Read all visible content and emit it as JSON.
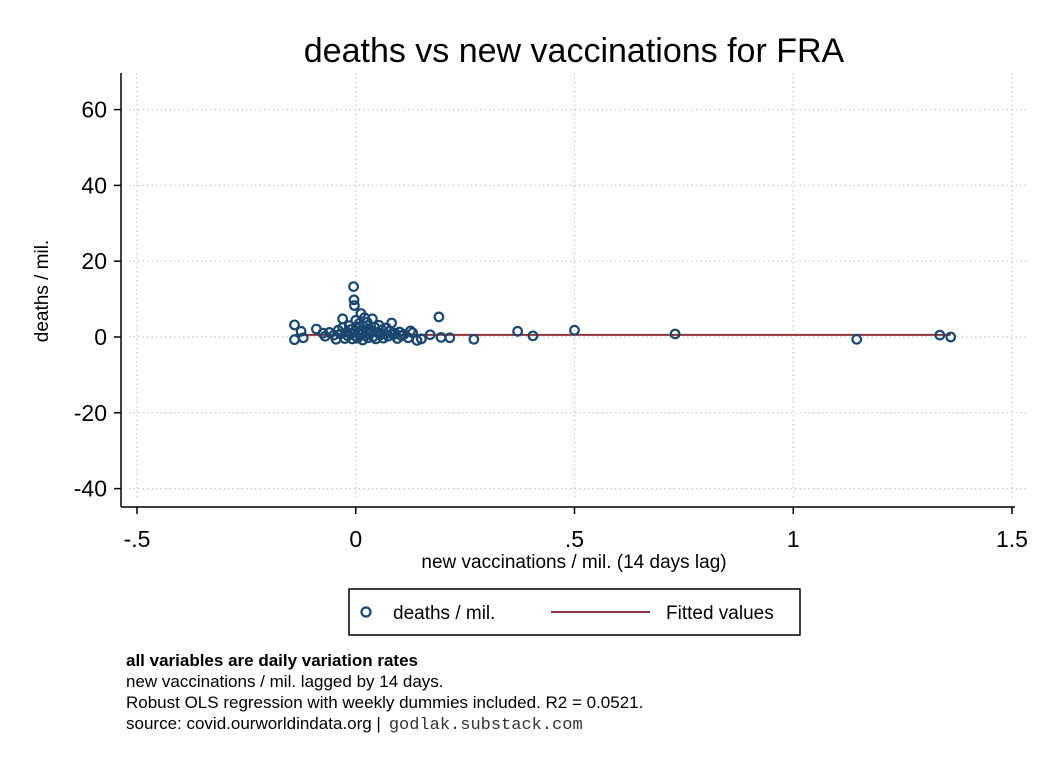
{
  "chart_data": {
    "type": "scatter",
    "title": "deaths vs new vaccinations for FRA",
    "xlabel": "new vaccinations / mil. (14 days lag)",
    "ylabel": "deaths / mil.",
    "xlim": [
      -0.5,
      1.5
    ],
    "ylim": [
      -45,
      70
    ],
    "xticks": [
      -0.5,
      0,
      0.5,
      1,
      1.5
    ],
    "xtick_labels": [
      "-.5",
      "0",
      ".5",
      "1",
      "1.5"
    ],
    "yticks": [
      -40,
      -20,
      0,
      20,
      40,
      60
    ],
    "ytick_labels": [
      "-40",
      "-20",
      "0",
      "20",
      "40",
      "60"
    ],
    "grid": true,
    "legend_position": "bottom",
    "series": [
      {
        "name": "deaths / mil.",
        "kind": "scatter",
        "color": "#1a476f",
        "points": [
          [
            -0.14,
            -0.7
          ],
          [
            -0.14,
            3.2
          ],
          [
            -0.125,
            1.5
          ],
          [
            -0.12,
            -0.2
          ],
          [
            -0.09,
            2.1
          ],
          [
            -0.075,
            1.0
          ],
          [
            -0.07,
            0.2
          ],
          [
            -0.06,
            1.2
          ],
          [
            -0.05,
            0.5
          ],
          [
            -0.045,
            -0.6
          ],
          [
            -0.04,
            1.8
          ],
          [
            -0.035,
            0.8
          ],
          [
            -0.03,
            4.8
          ],
          [
            -0.03,
            2.5
          ],
          [
            -0.025,
            -0.4
          ],
          [
            -0.02,
            1.3
          ],
          [
            -0.018,
            0.3
          ],
          [
            -0.015,
            3.0
          ],
          [
            -0.012,
            0.9
          ],
          [
            -0.01,
            2.0
          ],
          [
            -0.008,
            -0.5
          ],
          [
            -0.005,
            13.3
          ],
          [
            -0.004,
            9.8
          ],
          [
            -0.003,
            8.3
          ],
          [
            -0.002,
            1.5
          ],
          [
            0.0,
            0.2
          ],
          [
            0.0,
            4.4
          ],
          [
            0.002,
            2.7
          ],
          [
            0.004,
            -0.3
          ],
          [
            0.006,
            1.1
          ],
          [
            0.008,
            3.6
          ],
          [
            0.01,
            0.6
          ],
          [
            0.012,
            6.2
          ],
          [
            0.014,
            1.9
          ],
          [
            0.016,
            -0.8
          ],
          [
            0.018,
            2.8
          ],
          [
            0.02,
            5.1
          ],
          [
            0.022,
            0.4
          ],
          [
            0.024,
            1.6
          ],
          [
            0.026,
            3.9
          ],
          [
            0.028,
            -0.2
          ],
          [
            0.03,
            2.2
          ],
          [
            0.032,
            0.8
          ],
          [
            0.035,
            1.4
          ],
          [
            0.038,
            4.8
          ],
          [
            0.04,
            0.1
          ],
          [
            0.043,
            2.6
          ],
          [
            0.046,
            -0.5
          ],
          [
            0.05,
            1.2
          ],
          [
            0.053,
            3.1
          ],
          [
            0.056,
            0.5
          ],
          [
            0.06,
            1.9
          ],
          [
            0.063,
            -0.3
          ],
          [
            0.066,
            0.9
          ],
          [
            0.07,
            2.4
          ],
          [
            0.074,
            0.2
          ],
          [
            0.078,
            1.5
          ],
          [
            0.082,
            3.7
          ],
          [
            0.086,
            0.6
          ],
          [
            0.09,
            1.0
          ],
          [
            0.095,
            -0.4
          ],
          [
            0.1,
            1.3
          ],
          [
            0.105,
            0.3
          ],
          [
            0.11,
            0.7
          ],
          [
            0.12,
            -0.2
          ],
          [
            0.125,
            1.6
          ],
          [
            0.13,
            1.1
          ],
          [
            0.14,
            -0.9
          ],
          [
            0.15,
            -0.5
          ],
          [
            0.17,
            0.6
          ],
          [
            0.19,
            5.3
          ],
          [
            0.195,
            -0.1
          ],
          [
            0.215,
            -0.2
          ],
          [
            0.27,
            -0.6
          ],
          [
            0.37,
            1.5
          ],
          [
            0.405,
            0.3
          ],
          [
            0.5,
            1.8
          ],
          [
            0.73,
            0.8
          ],
          [
            1.145,
            -0.6
          ],
          [
            1.335,
            0.5
          ],
          [
            1.36,
            0.0
          ]
        ]
      },
      {
        "name": "Fitted values",
        "kind": "line",
        "color": "#90353b",
        "x": [
          -0.14,
          1.36
        ],
        "y": [
          0.55,
          0.55
        ]
      }
    ],
    "notes": {
      "heading": "all variables are daily variation rates",
      "line1": "new vaccinations / mil. lagged by 14 days.",
      "line2": "Robust OLS regression with weekly dummies included. R2 = 0.0521.",
      "source": "source: covid.ourworldindata.org |",
      "site": "godlak.substack.com"
    }
  }
}
